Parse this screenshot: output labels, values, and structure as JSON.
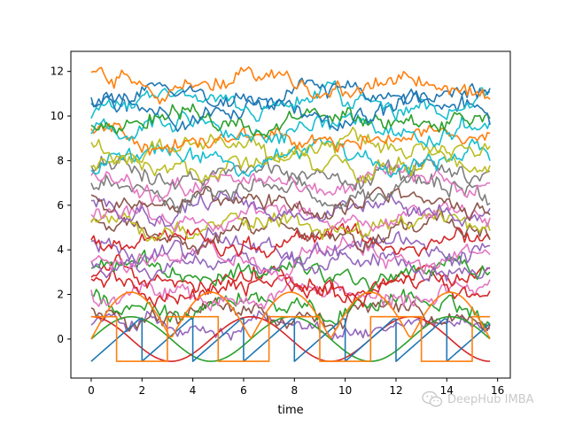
{
  "chart_data": {
    "type": "line",
    "title": "",
    "xlabel": "time",
    "ylabel": "",
    "xlim": [
      -0.8,
      16.5
    ],
    "ylim": [
      -1.75,
      12.9
    ],
    "x_ticks": [
      0,
      2,
      4,
      6,
      8,
      10,
      12,
      14,
      16
    ],
    "y_ticks": [
      0,
      2,
      4,
      6,
      8,
      10,
      12
    ],
    "x_tick_labels": [
      "0",
      "2",
      "4",
      "6",
      "8",
      "10",
      "12",
      "14",
      "16"
    ],
    "y_tick_labels": [
      "0",
      "2",
      "4",
      "6",
      "8",
      "10",
      "12"
    ],
    "grid": false,
    "legend": "none",
    "x_range": [
      0,
      15.7
    ],
    "n_points": 158,
    "deterministic_series": [
      {
        "shape": "sine",
        "period": 6.2832,
        "amplitude": 1.0,
        "offset": 0.0,
        "color": "#2ca02c"
      },
      {
        "shape": "cosine",
        "period": 6.2832,
        "amplitude": 1.0,
        "offset": 0.0,
        "color": "#d62728"
      },
      {
        "shape": "sawtooth",
        "period": 2.0,
        "amplitude": 1.0,
        "offset": 0.0,
        "color": "#1f77b4"
      },
      {
        "shape": "square",
        "period": 4.0,
        "amplitude": 1.0,
        "offset": 0.0,
        "color": "#ff7f0e"
      },
      {
        "shape": "abs-sine",
        "period": 6.2832,
        "amplitude": 2.1,
        "offset": 0.0,
        "color": "#ff7f0e"
      }
    ],
    "noisy_series": [
      {
        "level": 0.5,
        "color": "#9467bd"
      },
      {
        "level": 1.0,
        "color": "#8c564b"
      },
      {
        "level": 1.5,
        "color": "#2ca02c"
      },
      {
        "level": 2.0,
        "color": "#e377c2"
      },
      {
        "level": 2.3,
        "color": "#d62728"
      },
      {
        "level": 2.7,
        "color": "#d62728"
      },
      {
        "level": 3.0,
        "color": "#2ca02c"
      },
      {
        "level": 3.4,
        "color": "#9467bd"
      },
      {
        "level": 3.7,
        "color": "#e377c2"
      },
      {
        "level": 4.1,
        "color": "#9467bd"
      },
      {
        "level": 4.4,
        "color": "#d62728"
      },
      {
        "level": 4.8,
        "color": "#8c564b"
      },
      {
        "level": 5.1,
        "color": "#bcbd22"
      },
      {
        "level": 5.5,
        "color": "#e377c2"
      },
      {
        "level": 5.8,
        "color": "#9467bd"
      },
      {
        "level": 6.2,
        "color": "#8c564b"
      },
      {
        "level": 6.6,
        "color": "#7f7f7f"
      },
      {
        "level": 7.0,
        "color": "#e377c2"
      },
      {
        "level": 7.4,
        "color": "#7f7f7f"
      },
      {
        "level": 7.8,
        "color": "#bcbd22"
      },
      {
        "level": 8.2,
        "color": "#17becf"
      },
      {
        "level": 8.6,
        "color": "#bcbd22"
      },
      {
        "level": 9.0,
        "color": "#ff7f0e"
      },
      {
        "level": 9.4,
        "color": "#17becf"
      },
      {
        "level": 9.8,
        "color": "#2ca02c"
      },
      {
        "level": 10.2,
        "color": "#1f77b4"
      },
      {
        "level": 10.6,
        "color": "#17becf"
      },
      {
        "level": 11.0,
        "color": "#1f77b4"
      },
      {
        "level": 11.4,
        "color": "#ff7f0e"
      }
    ]
  },
  "watermark": {
    "text": "DeepHub IMBA",
    "icon": "wechat-icon"
  }
}
